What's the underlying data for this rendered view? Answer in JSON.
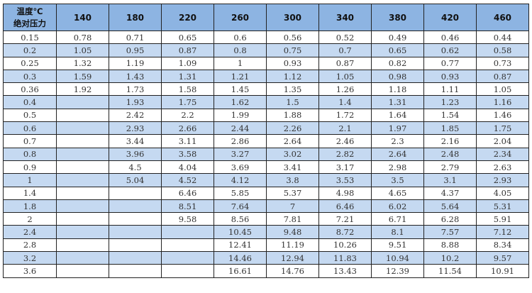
{
  "header": {
    "corner_line1": "温度℃",
    "corner_line2": "绝对压力",
    "temperatures": [
      "140",
      "180",
      "220",
      "260",
      "300",
      "340",
      "380",
      "420",
      "460"
    ]
  },
  "colors": {
    "header_bg": "#8db4e2",
    "alt_row_bg": "#c5d9f1"
  },
  "rows": [
    {
      "pressure": "0.15",
      "cells": [
        "0.78",
        "0.71",
        "0.65",
        "0.6",
        "0.56",
        "0.52",
        "0.49",
        "0.46",
        "0.44"
      ]
    },
    {
      "pressure": "0.2",
      "cells": [
        "1.05",
        "0.95",
        "0.87",
        "0.8",
        "0.75",
        "0.7",
        "0.65",
        "0.62",
        "0.58"
      ]
    },
    {
      "pressure": "0.25",
      "cells": [
        "1.32",
        "1.19",
        "1.09",
        "1",
        "0.93",
        "0.87",
        "0.82",
        "0.77",
        "0.73"
      ]
    },
    {
      "pressure": "0.3",
      "cells": [
        "1.59",
        "1.43",
        "1.31",
        "1.21",
        "1.12",
        "1.05",
        "0.98",
        "0.93",
        "0.87"
      ]
    },
    {
      "pressure": "0.36",
      "cells": [
        "1.92",
        "1.73",
        "1.58",
        "1.45",
        "1.35",
        "1.26",
        "1.18",
        "1.11",
        "1.05"
      ]
    },
    {
      "pressure": "0.4",
      "cells": [
        "",
        "1.93",
        "1.75",
        "1.62",
        "1.5",
        "1.4",
        "1.31",
        "1.23",
        "1.16"
      ]
    },
    {
      "pressure": "0.5",
      "cells": [
        "",
        "2.42",
        "2.2",
        "1.99",
        "1.88",
        "1.72",
        "1.64",
        "1.54",
        "1.46"
      ]
    },
    {
      "pressure": "0.6",
      "cells": [
        "",
        "2.93",
        "2.66",
        "2.44",
        "2.26",
        "2.1",
        "1.97",
        "1.85",
        "1.75"
      ]
    },
    {
      "pressure": "0.7",
      "cells": [
        "",
        "3.44",
        "3.11",
        "2.86",
        "2.64",
        "2.46",
        "2.3",
        "2.16",
        "2.04"
      ]
    },
    {
      "pressure": "0.8",
      "cells": [
        "",
        "3.96",
        "3.58",
        "3.27",
        "3.02",
        "2.82",
        "2.64",
        "2.48",
        "2.34"
      ]
    },
    {
      "pressure": "0.9",
      "cells": [
        "",
        "4.5",
        "4.04",
        "3.69",
        "3.41",
        "3.17",
        "2.98",
        "2.79",
        "2.63"
      ]
    },
    {
      "pressure": "1",
      "cells": [
        "",
        "5.04",
        "4.52",
        "4.12",
        "3.8",
        "3.53",
        "3.5",
        "3.1",
        "2.93"
      ]
    },
    {
      "pressure": "1.4",
      "cells": [
        "",
        "",
        "6.46",
        "5.85",
        "5.37",
        "4.98",
        "4.65",
        "4.37",
        "4.05"
      ]
    },
    {
      "pressure": "1.8",
      "cells": [
        "",
        "",
        "8.51",
        "7.64",
        "7",
        "6.46",
        "6.02",
        "5.64",
        "5.31"
      ]
    },
    {
      "pressure": "2",
      "cells": [
        "",
        "",
        "9.58",
        "8.56",
        "7.81",
        "7.21",
        "6.71",
        "6.28",
        "5.91"
      ]
    },
    {
      "pressure": "2.4",
      "cells": [
        "",
        "",
        "",
        "10.45",
        "9.48",
        "8.72",
        "8.1",
        "7.57",
        "7.12"
      ]
    },
    {
      "pressure": "2.8",
      "cells": [
        "",
        "",
        "",
        "12.41",
        "11.19",
        "10.26",
        "9.51",
        "8.88",
        "8.34"
      ]
    },
    {
      "pressure": "3.2",
      "cells": [
        "",
        "",
        "",
        "14.46",
        "12.94",
        "11.83",
        "10.94",
        "10.2",
        "9.57"
      ]
    },
    {
      "pressure": "3.6",
      "cells": [
        "",
        "",
        "",
        "16.61",
        "14.76",
        "13.43",
        "12.39",
        "11.54",
        "10.91"
      ]
    }
  ]
}
